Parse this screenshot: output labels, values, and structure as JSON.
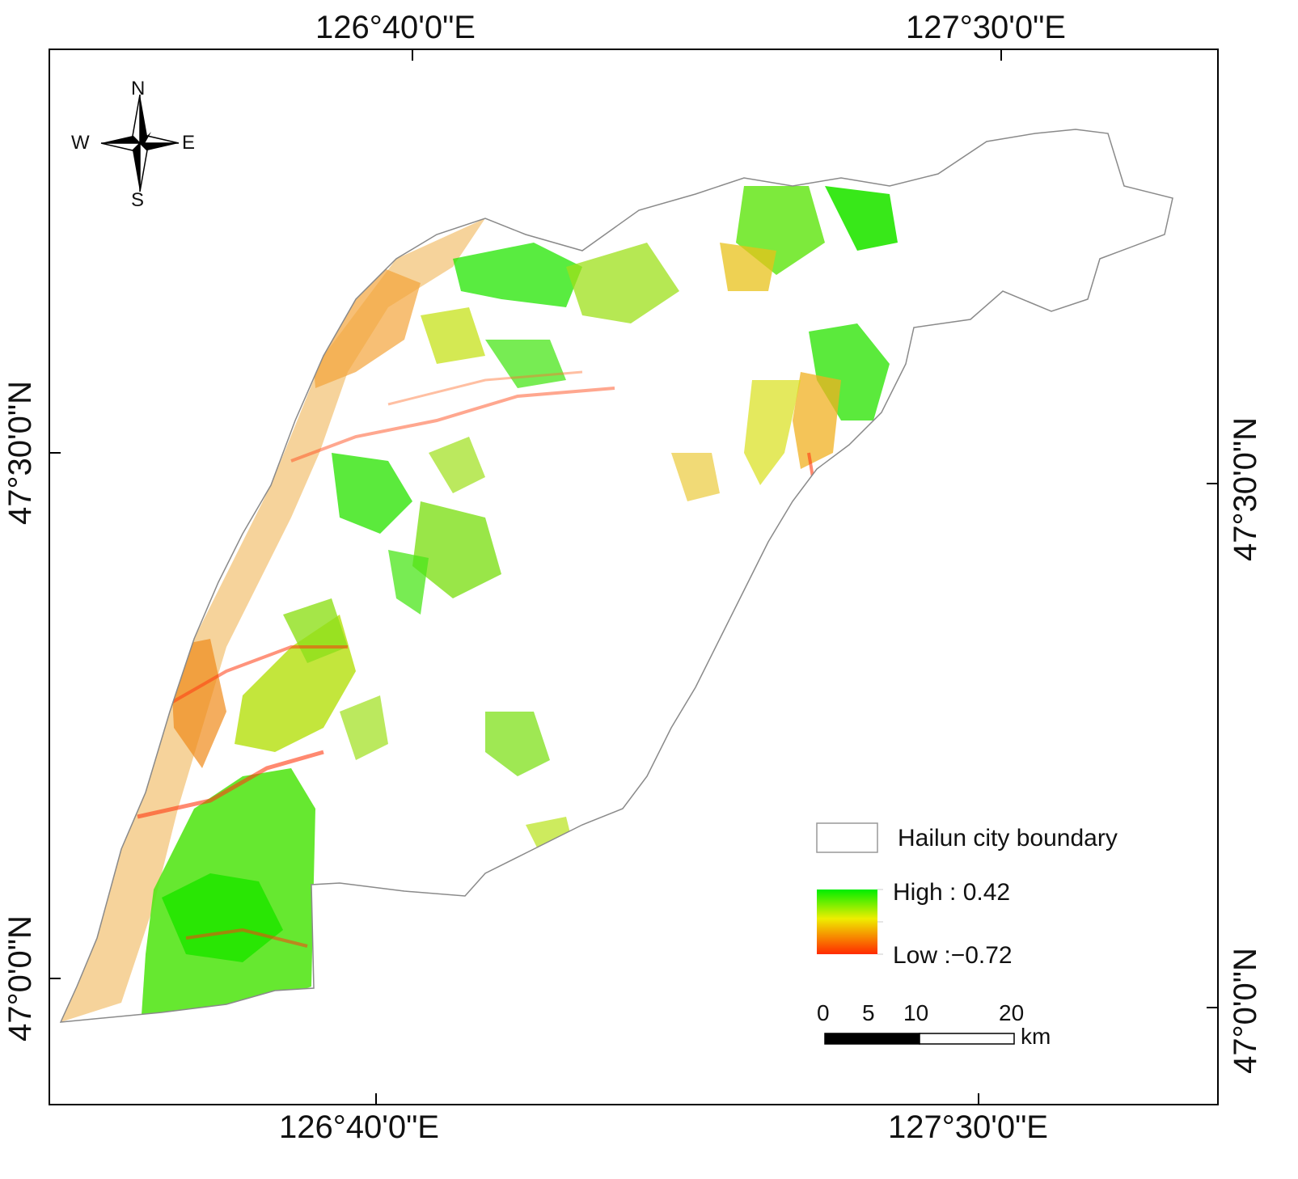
{
  "map": {
    "graticule": {
      "top_labels": [
        "126°40'0\"E",
        "127°30'0\"E"
      ],
      "bottom_labels": [
        "126°40'0\"E",
        "127°30'0\"E"
      ],
      "left_labels": [
        "47°30'0\"N",
        "47°0'0\"N"
      ],
      "right_labels": [
        "47°30'0\"N",
        "47°0'0\"N"
      ]
    },
    "compass": {
      "n": "N",
      "s": "S",
      "e": "E",
      "w": "W"
    },
    "legend": {
      "boundary_label": "Hailun city boundary",
      "high_label": "High : 0.42",
      "low_label": "Low :−0.72",
      "high_value": 0.42,
      "low_value": -0.72,
      "colors": {
        "high": "#00ee00",
        "mid": "#eeee00",
        "low": "#ff2a00"
      }
    },
    "scale_bar": {
      "ticks": [
        "0",
        "5",
        "10",
        "20"
      ],
      "unit": "km"
    }
  }
}
